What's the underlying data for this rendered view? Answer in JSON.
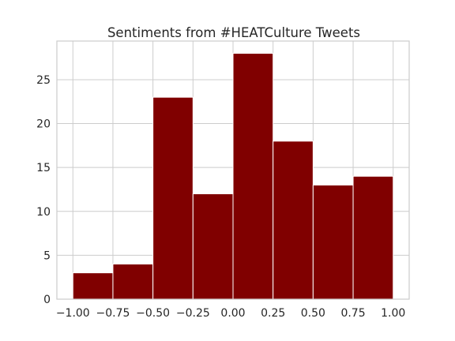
{
  "chart_data": {
    "type": "bar",
    "subtype": "histogram",
    "title": "Sentiments from #HEATCulture Tweets",
    "xlabel": "",
    "ylabel": "",
    "bins": [
      {
        "x0": -1.0,
        "x1": -0.75,
        "count": 3
      },
      {
        "x0": -0.75,
        "x1": -0.5,
        "count": 4
      },
      {
        "x0": -0.5,
        "x1": -0.25,
        "count": 23
      },
      {
        "x0": -0.25,
        "x1": 0.0,
        "count": 12
      },
      {
        "x0": 0.0,
        "x1": 0.25,
        "count": 28
      },
      {
        "x0": 0.25,
        "x1": 0.5,
        "count": 18
      },
      {
        "x0": 0.5,
        "x1": 0.75,
        "count": 13
      },
      {
        "x0": 0.75,
        "x1": 1.0,
        "count": 14
      }
    ],
    "xlim": [
      -1.1,
      1.1
    ],
    "ylim": [
      0,
      29.4
    ],
    "xticks": [
      -1.0,
      -0.75,
      -0.5,
      -0.25,
      0.0,
      0.25,
      0.5,
      0.75,
      1.0
    ],
    "xtick_labels": [
      "−1.00",
      "−0.75",
      "−0.50",
      "−0.25",
      "0.00",
      "0.25",
      "0.50",
      "0.75",
      "1.00"
    ],
    "yticks": [
      0,
      5,
      10,
      15,
      20,
      25
    ],
    "ytick_labels": [
      "0",
      "5",
      "10",
      "15",
      "20",
      "25"
    ],
    "grid": true,
    "legend": "none",
    "colors": {
      "bar": "#800000",
      "bar_edge": "#ffffff",
      "grid": "#cccccc",
      "spine": "#cccccc",
      "text": "#262626"
    }
  }
}
